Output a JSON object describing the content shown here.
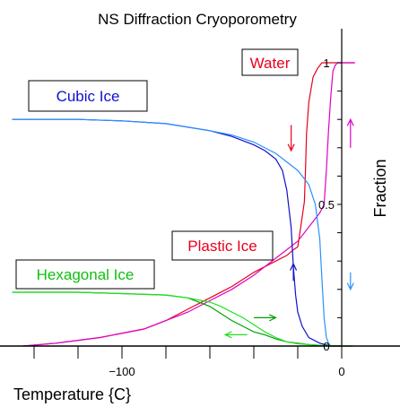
{
  "chart_data": {
    "type": "line",
    "title": "NS Diffraction Cryoporometry",
    "xlabel": "Temperature {C}",
    "ylabel": "Fraction",
    "xlim": [
      -150,
      8
    ],
    "ylim": [
      0,
      1.05
    ],
    "x_ticks": [
      -140,
      -120,
      -100,
      -80,
      -60,
      -40,
      -20,
      0
    ],
    "x_tick_labels": [
      {
        "value": -100,
        "label": "−100"
      },
      {
        "value": 0,
        "label": "0"
      }
    ],
    "y_ticks": [
      0,
      0.1,
      0.2,
      0.3,
      0.4,
      0.5,
      0.6,
      0.7,
      0.8,
      0.9,
      1.0
    ],
    "y_tick_labels": [
      {
        "value": 0,
        "label": "0"
      },
      {
        "value": 0.5,
        "label": "0.5"
      },
      {
        "value": 1,
        "label": "1"
      }
    ],
    "grid": false,
    "colors": {
      "water": "#e8001c",
      "plastic": "#e000c8",
      "cubic_cool": "#1010d0",
      "cubic_warm": "#2a90ff",
      "hex_cool": "#00a000",
      "hex_warm": "#20e020"
    },
    "legend_labels": {
      "water": "Water",
      "cubic": "Cubic Ice",
      "plastic": "Plastic Ice",
      "hexagonal": "Hexagonal Ice"
    },
    "series": [
      {
        "key": "water_cooling",
        "color": "#e8001c",
        "x": [
          -20,
          -19,
          -17,
          -16.5,
          -16,
          -15,
          -13,
          -11,
          -9,
          -6,
          -3,
          0,
          3,
          6
        ],
        "y": [
          0.35,
          0.4,
          0.51,
          0.62,
          0.75,
          0.86,
          0.95,
          0.98,
          1.0,
          1.0,
          1.0,
          1.0,
          1.0,
          1.0
        ]
      },
      {
        "key": "water_warming",
        "color": "#e000c8",
        "x": [
          -8,
          -7,
          -6,
          -5,
          -4,
          -3,
          -2,
          0,
          2,
          4,
          6
        ],
        "y": [
          0.5,
          0.62,
          0.76,
          0.88,
          0.97,
          0.99,
          1.0,
          1.0,
          1.0,
          1.0,
          1.0
        ]
      },
      {
        "key": "plastic_cooling",
        "color": "#e8001c",
        "x": [
          -145,
          -130,
          -110,
          -90,
          -80,
          -70,
          -60,
          -50,
          -40,
          -30,
          -25,
          -22,
          -20
        ],
        "y": [
          0.0,
          0.01,
          0.03,
          0.06,
          0.09,
          0.13,
          0.17,
          0.21,
          0.26,
          0.3,
          0.32,
          0.34,
          0.35
        ]
      },
      {
        "key": "plastic_warming",
        "color": "#e000c8",
        "x": [
          -145,
          -130,
          -110,
          -90,
          -80,
          -70,
          -60,
          -50,
          -40,
          -30,
          -20,
          -15,
          -10,
          -8
        ],
        "y": [
          0.0,
          0.01,
          0.03,
          0.06,
          0.09,
          0.12,
          0.16,
          0.2,
          0.25,
          0.31,
          0.37,
          0.42,
          0.47,
          0.5
        ]
      },
      {
        "key": "cubic_cooling",
        "color": "#1010d0",
        "x": [
          -150,
          -120,
          -100,
          -80,
          -60,
          -50,
          -40,
          -35,
          -30,
          -27,
          -25,
          -23,
          -22,
          -21,
          -20,
          -18,
          -15,
          -10,
          -5,
          0
        ],
        "y": [
          0.8,
          0.8,
          0.795,
          0.785,
          0.76,
          0.74,
          0.71,
          0.69,
          0.66,
          0.62,
          0.55,
          0.42,
          0.28,
          0.18,
          0.12,
          0.07,
          0.03,
          0.01,
          0.0,
          0.0
        ]
      },
      {
        "key": "cubic_warming",
        "color": "#2a90ff",
        "x": [
          -150,
          -120,
          -100,
          -80,
          -60,
          -50,
          -40,
          -30,
          -20,
          -15,
          -12,
          -10,
          -9,
          -8,
          -7,
          -6,
          -5,
          0
        ],
        "y": [
          0.8,
          0.8,
          0.795,
          0.785,
          0.76,
          0.745,
          0.72,
          0.68,
          0.62,
          0.57,
          0.5,
          0.38,
          0.24,
          0.1,
          0.03,
          0.01,
          0.0,
          0.0
        ]
      },
      {
        "key": "hex_cooling",
        "color": "#00a000",
        "x": [
          -150,
          -120,
          -100,
          -80,
          -70,
          -60,
          -55,
          -50,
          -45,
          -40,
          -35,
          -30,
          -25,
          -20,
          -15,
          -10,
          -5,
          0,
          5
        ],
        "y": [
          0.19,
          0.19,
          0.185,
          0.18,
          0.17,
          0.14,
          0.115,
          0.09,
          0.07,
          0.05,
          0.04,
          0.025,
          0.015,
          0.01,
          0.005,
          0.002,
          0.0,
          0.0,
          0.0
        ]
      },
      {
        "key": "hex_warming",
        "color": "#20e020",
        "x": [
          -150,
          -120,
          -100,
          -80,
          -70,
          -60,
          -55,
          -50,
          -45,
          -40,
          -35,
          -30,
          -25,
          -20,
          -10,
          0,
          5
        ],
        "y": [
          0.19,
          0.19,
          0.185,
          0.18,
          0.17,
          0.155,
          0.14,
          0.12,
          0.1,
          0.075,
          0.05,
          0.03,
          0.015,
          0.008,
          0.003,
          0.0,
          0.0
        ]
      }
    ],
    "arrows": [
      {
        "color": "#e8001c",
        "x": -23,
        "y_from": 0.78,
        "y_to": 0.69
      },
      {
        "color": "#e000c8",
        "x": 4,
        "y_from": 0.7,
        "y_to": 0.8
      },
      {
        "color": "#1010d0",
        "x": -22,
        "y_from": 0.23,
        "y_to": 0.29
      },
      {
        "color": "#2a90ff",
        "x": 4,
        "y_from": 0.26,
        "y_to": 0.2
      },
      {
        "color": "#00a000",
        "x_from": -40,
        "x_to": -30,
        "y": 0.1
      },
      {
        "color": "#20e020",
        "x_from": -43,
        "x_to": -53,
        "y": 0.04
      }
    ]
  }
}
